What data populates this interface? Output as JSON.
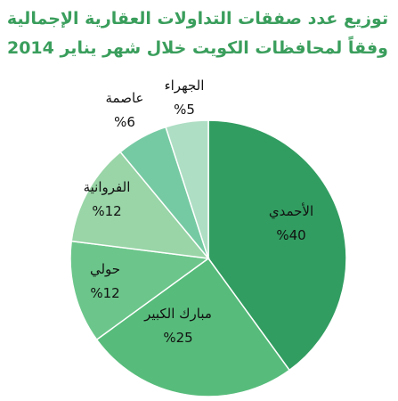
{
  "chart_data": {
    "type": "pie",
    "title": [
      "توزيع عدد صفقات التداولات العقارية الإجمالية",
      "وفقاً لمحافظات الكويت خلال شهر يناير 2014"
    ],
    "categories": [
      "الأحمدي",
      "مبارك الكبير",
      "حولي",
      "الفروانية",
      "عاصمة",
      "الجهراء"
    ],
    "values": [
      40,
      25,
      12,
      12,
      6,
      5
    ],
    "value_labels": [
      "%40",
      "%25",
      "%12",
      "%12",
      "%6",
      "%5"
    ],
    "colors": [
      "#329d61",
      "#57bc7b",
      "#6cc68b",
      "#99d5a7",
      "#76caa3",
      "#aedec4"
    ]
  }
}
